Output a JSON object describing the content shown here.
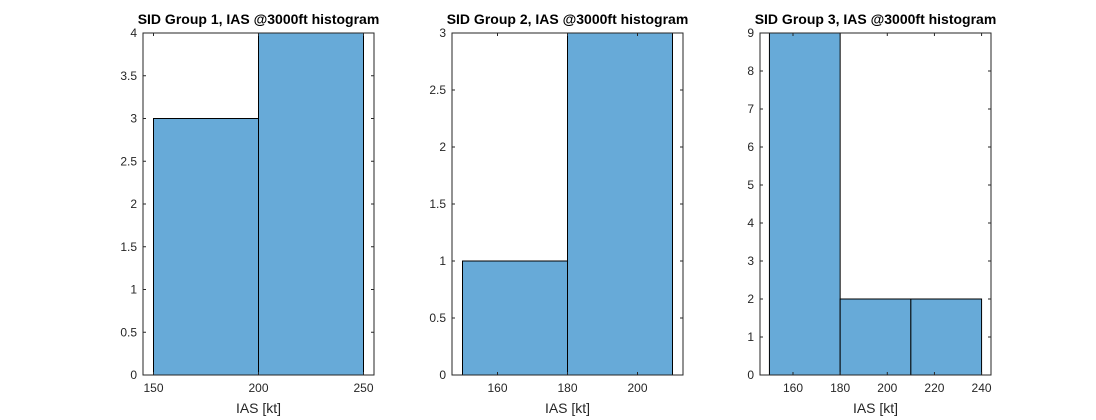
{
  "chart_data": [
    {
      "type": "bar",
      "title": "SID Group 1, IAS @3000ft histogram",
      "xlabel": "IAS [kt]",
      "ylabel": "",
      "bins": [
        [
          150,
          200
        ],
        [
          200,
          250
        ]
      ],
      "values": [
        3,
        4
      ],
      "xlim": [
        145,
        255
      ],
      "ylim": [
        0,
        4
      ],
      "xticks": [
        150,
        200,
        250
      ],
      "yticks": [
        0,
        0.5,
        1,
        1.5,
        2,
        2.5,
        3,
        3.5,
        4
      ],
      "color": "#67aad8",
      "grid": false
    },
    {
      "type": "bar",
      "title": "SID Group 2, IAS @3000ft histogram",
      "xlabel": "IAS [kt]",
      "ylabel": "",
      "bins": [
        [
          150,
          180
        ],
        [
          180,
          210
        ]
      ],
      "values": [
        1,
        3
      ],
      "xlim": [
        147,
        213
      ],
      "ylim": [
        0,
        3
      ],
      "xticks": [
        160,
        180,
        200
      ],
      "yticks": [
        0,
        0.5,
        1,
        1.5,
        2,
        2.5,
        3
      ],
      "color": "#67aad8",
      "grid": false
    },
    {
      "type": "bar",
      "title": "SID Group 3, IAS @3000ft histogram",
      "xlabel": "IAS [kt]",
      "ylabel": "",
      "bins": [
        [
          150,
          180
        ],
        [
          180,
          210
        ],
        [
          210,
          240
        ]
      ],
      "values": [
        9,
        2,
        2
      ],
      "xlim": [
        146,
        244
      ],
      "ylim": [
        0,
        9
      ],
      "xticks": [
        160,
        180,
        200,
        220,
        240
      ],
      "yticks": [
        0,
        1,
        2,
        3,
        4,
        5,
        6,
        7,
        8,
        9
      ],
      "color": "#67aad8",
      "grid": false
    }
  ]
}
